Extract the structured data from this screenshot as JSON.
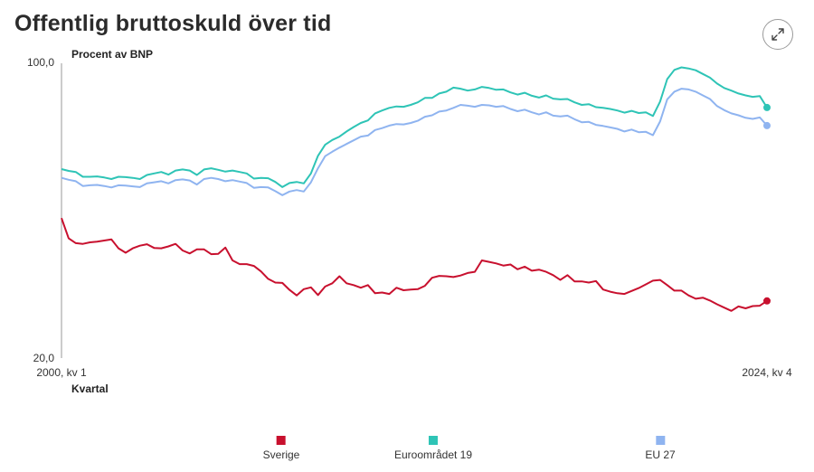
{
  "title": "Offentlig bruttoskuld över tid",
  "expand_icon": "expand-arrows-icon",
  "chart_data": {
    "type": "line",
    "title": "Offentlig bruttoskuld över tid",
    "ylabel": "Procent av BNP",
    "xlabel": "Kvartal",
    "ylim": [
      20,
      100
    ],
    "y_ticks": [
      "100,0",
      "20,0"
    ],
    "x_tick_labels": [
      "2000, kv 1",
      "2024, kv 4"
    ],
    "x_count": 100,
    "grid": false,
    "legend_position": "bottom",
    "series": [
      {
        "name": "Sverige",
        "color": "#c8102e",
        "values": [
          58,
          52.5,
          51.2,
          51,
          51.4,
          51.6,
          51.9,
          52.2,
          49.8,
          48.6,
          49.8,
          50.5,
          50.9,
          49.9,
          49.8,
          50.3,
          51,
          49.2,
          48.4,
          49.5,
          49.5,
          48.2,
          48.3,
          50,
          46.5,
          45.5,
          45.5,
          45,
          43.5,
          41.5,
          40.5,
          40.4,
          38.5,
          37,
          38.7,
          39.2,
          37.1,
          39.4,
          40.3,
          42.2,
          40.3,
          39.8,
          39.1,
          39.8,
          37.6,
          37.8,
          37.4,
          39.1,
          38.4,
          38.6,
          38.7,
          39.6,
          41.8,
          42.3,
          42.2,
          42,
          42.4,
          43.1,
          43.4,
          46.5,
          46.1,
          45.7,
          45.1,
          45.4,
          44.1,
          44.8,
          43.7,
          44,
          43.4,
          42.5,
          41.2,
          42.5,
          40.8,
          40.8,
          40.5,
          40.9,
          38.6,
          38,
          37.6,
          37.4,
          38.2,
          39,
          40,
          41,
          41.2,
          39.8,
          38.3,
          38.3,
          37,
          36.1,
          36.4,
          35.6,
          34.6,
          33.7,
          32.8,
          34,
          33.5,
          34.1,
          34.2,
          35.5
        ]
      },
      {
        "name": "Euroområdet 19",
        "color": "#2ec4b6",
        "values": [
          71.3,
          70.8,
          70.5,
          69.2,
          69.2,
          69.3,
          69.0,
          68.6,
          69.2,
          69.1,
          68.9,
          68.6,
          69.7,
          70.1,
          70.5,
          69.8,
          70.9,
          71.2,
          70.9,
          69.7,
          71.2,
          71.5,
          71.1,
          70.6,
          70.9,
          70.5,
          70.1,
          68.7,
          68.9,
          68.8,
          67.8,
          66.4,
          67.5,
          67.8,
          67.4,
          70.1,
          74.9,
          77.9,
          79.2,
          80.1,
          81.5,
          82.7,
          83.8,
          84.5,
          86.4,
          87.2,
          87.9,
          88.3,
          88.2,
          88.7,
          89.4,
          90.6,
          90.6,
          91.8,
          92.3,
          93.4,
          93.1,
          92.6,
          92.9,
          93.6,
          93.3,
          92.8,
          92.9,
          92.1,
          91.5,
          92.0,
          91.2,
          90.7,
          91.3,
          90.4,
          90.2,
          90.3,
          89.4,
          88.7,
          88.9,
          88.1,
          87.9,
          87.6,
          87.2,
          86.6,
          87.1,
          86.5,
          86.7,
          85.7,
          89.6,
          95.7,
          98.2,
          98.9,
          98.6,
          98.1,
          97.1,
          96.1,
          94.5,
          93.3,
          92.6,
          91.8,
          91.3,
          90.9,
          91.1,
          88.0
        ]
      },
      {
        "name": "EU 27",
        "color": "#8fb4f0",
        "values": [
          68.9,
          68.4,
          68.0,
          66.7,
          66.9,
          67.0,
          66.7,
          66.3,
          66.9,
          66.8,
          66.6,
          66.4,
          67.4,
          67.7,
          68.0,
          67.4,
          68.3,
          68.5,
          68.2,
          67.1,
          68.6,
          68.9,
          68.6,
          68.0,
          68.3,
          67.9,
          67.5,
          66.2,
          66.4,
          66.3,
          65.3,
          64.2,
          65.2,
          65.6,
          65.2,
          67.7,
          71.5,
          74.8,
          76.0,
          77.1,
          78.1,
          79.1,
          80.1,
          80.4,
          81.9,
          82.4,
          83.1,
          83.5,
          83.4,
          83.8,
          84.4,
          85.5,
          85.9,
          86.9,
          87.2,
          87.9,
          88.7,
          88.5,
          88.2,
          88.7,
          88.6,
          88.2,
          88.4,
          87.6,
          87.0,
          87.4,
          86.7,
          86.1,
          86.7,
          85.8,
          85.6,
          85.8,
          84.8,
          84.0,
          84.1,
          83.3,
          83.0,
          82.6,
          82.2,
          81.5,
          82.0,
          81.3,
          81.4,
          80.5,
          84.2,
          90.2,
          92.3,
          93.1,
          92.9,
          92.3,
          91.3,
          90.3,
          88.4,
          87.3,
          86.4,
          85.9,
          85.2,
          84.9,
          85.3,
          83.1
        ]
      }
    ]
  }
}
